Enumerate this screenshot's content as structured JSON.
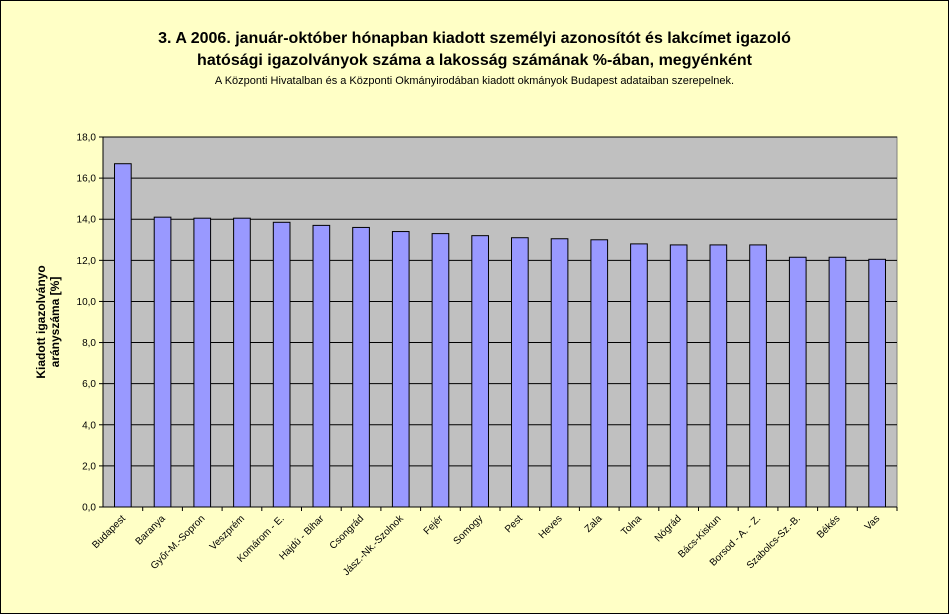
{
  "title_line1": "3. A 2006. január-október hónapban kiadott személyi azonosítót és lakcímet igazoló",
  "title_line2": "hatósági igazolványok száma a lakosság  számának %-ában, megyénként",
  "subtitle": "A Központi Hivatalban és a Központi Okmányirodában kiadott okmányok Budapest adataiban szerepelnek.",
  "ylabel_line1": "Kiadott igazolványo",
  "ylabel_line2": "arányszáma [%]",
  "chart_data": {
    "type": "bar",
    "categories": [
      "Budapest",
      "Baranya",
      "Győr-M.-Sopron",
      "Veszprém",
      "Komárom - E.",
      "Hajdú - Bihar",
      "Csongrád",
      "Jász.-Nk.-Szolnok",
      "Fejér",
      "Somogy",
      "Pest",
      "Heves",
      "Zala",
      "Tolna",
      "Nógrád",
      "Bács-Kiskun",
      "Borsod - A. - Z.",
      "Szabolcs-Sz.-B.",
      "Békés",
      "Vas"
    ],
    "values": [
      16.7,
      14.1,
      14.05,
      14.05,
      13.85,
      13.7,
      13.6,
      13.4,
      13.3,
      13.2,
      13.1,
      13.05,
      13.0,
      12.8,
      12.75,
      12.75,
      12.75,
      12.15,
      12.15,
      12.05
    ],
    "ylim": [
      0,
      18
    ],
    "yticks": [
      "0,0",
      "2,0",
      "4,0",
      "6,0",
      "8,0",
      "10,0",
      "12,0",
      "14,0",
      "16,0",
      "18,0"
    ],
    "grid": true,
    "bar_color": "#9999ff",
    "plot_color": "#c0c0c0"
  }
}
